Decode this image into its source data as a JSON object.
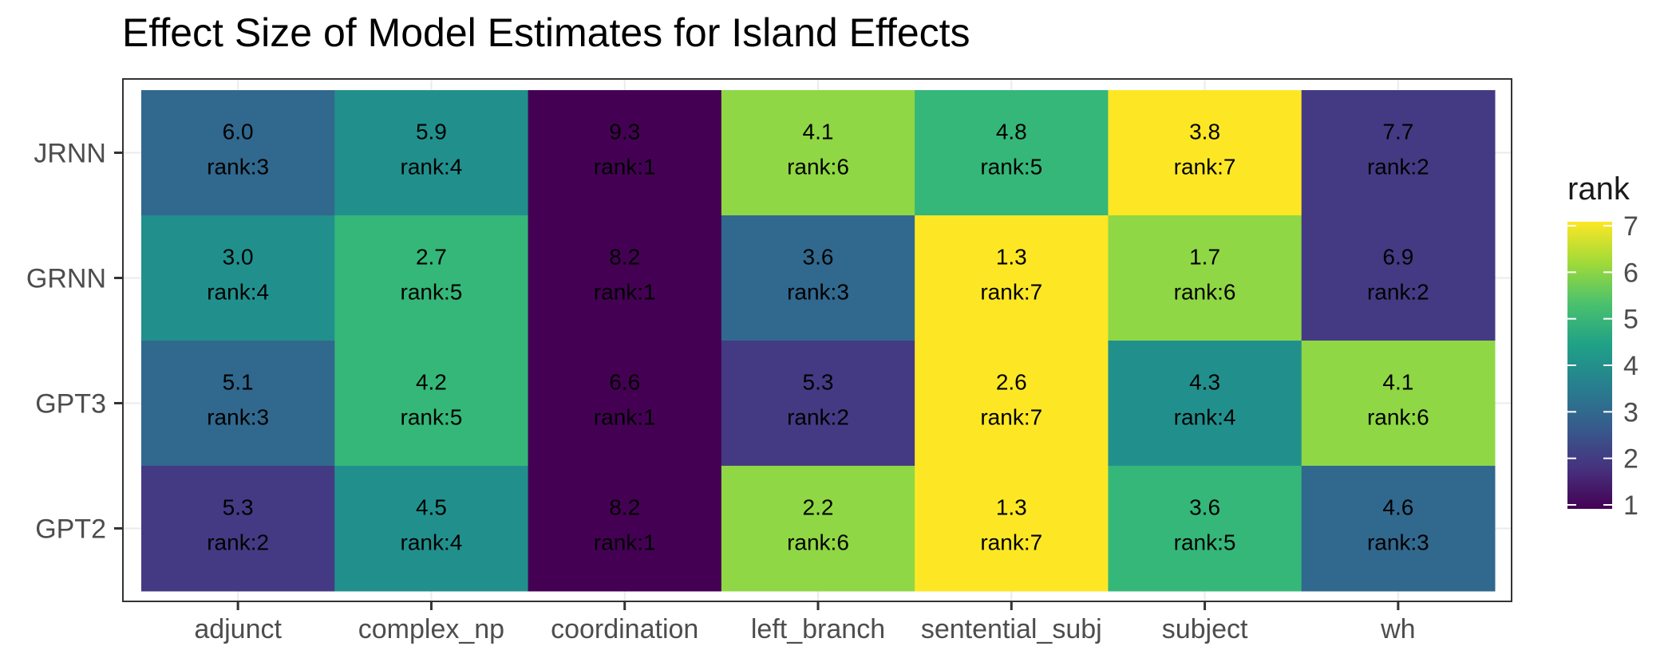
{
  "chart_data": {
    "type": "heatmap",
    "title": "Effect Size of Model Estimates for Island Effects",
    "xlabel": "",
    "ylabel": "",
    "x_categories": [
      "adjunct",
      "complex_np",
      "coordination",
      "left_branch",
      "sentential_subj",
      "subject",
      "wh"
    ],
    "y_categories_top_to_bottom": [
      "JRNN",
      "GRNN",
      "GPT3",
      "GPT2"
    ],
    "cell_label_prefix": "rank:",
    "values": [
      [
        6.0,
        5.9,
        9.3,
        4.1,
        4.8,
        3.8,
        7.7
      ],
      [
        3.0,
        2.7,
        8.2,
        3.6,
        1.3,
        1.7,
        6.9
      ],
      [
        5.1,
        4.2,
        6.6,
        5.3,
        2.6,
        4.3,
        4.1
      ],
      [
        5.3,
        4.5,
        8.2,
        2.2,
        1.3,
        3.6,
        4.6
      ]
    ],
    "value_labels": [
      [
        "6.0",
        "5.9",
        "9.3",
        "4.1",
        "4.8",
        "3.8",
        "7.7"
      ],
      [
        "3.0",
        "2.7",
        "8.2",
        "3.6",
        "1.3",
        "1.7",
        "6.9"
      ],
      [
        "5.1",
        "4.2",
        "6.6",
        "5.3",
        "2.6",
        "4.3",
        "4.1"
      ],
      [
        "5.3",
        "4.5",
        "8.2",
        "2.2",
        "1.3",
        "3.6",
        "4.6"
      ]
    ],
    "ranks": [
      [
        3,
        4,
        1,
        6,
        5,
        7,
        2
      ],
      [
        4,
        5,
        1,
        3,
        7,
        6,
        2
      ],
      [
        3,
        5,
        1,
        2,
        7,
        4,
        6
      ],
      [
        2,
        4,
        1,
        6,
        7,
        5,
        3
      ]
    ],
    "legend": {
      "title": "rank",
      "placement": "right",
      "ticks": [
        1,
        2,
        3,
        4,
        5,
        6,
        7
      ],
      "range": [
        1,
        7
      ]
    },
    "colorscale": "viridis",
    "grid": true
  }
}
